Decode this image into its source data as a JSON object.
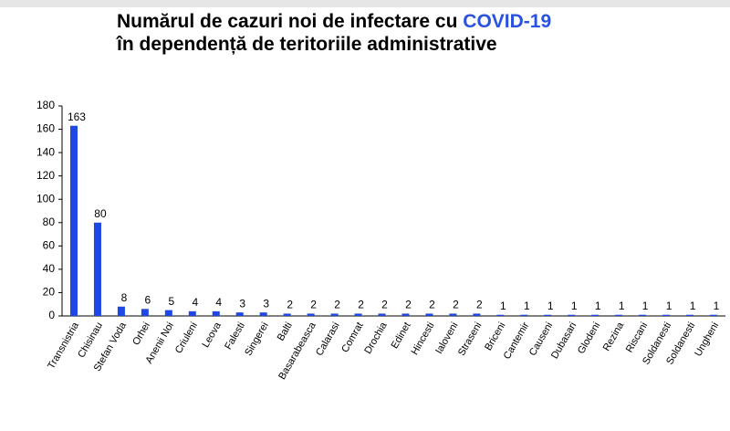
{
  "chart_data": {
    "type": "bar",
    "title": "Numărul de cazuri noi de infectare cu",
    "title_highlight": "COVID-19",
    "subtitle": "în dependență de teritoriile administrative",
    "categories": [
      "Transnistria",
      "Chisinau",
      "Stefan Voda",
      "Orhei",
      "Anenii Noi",
      "Criuleni",
      "Leova",
      "Falesti",
      "Singerei",
      "Balti",
      "Basarabeasca",
      "Calarasi",
      "Comrat",
      "Drochia",
      "Edinet",
      "Hincesti",
      "Ialoveni",
      "Straseni",
      "Briceni",
      "Cantemir",
      "Causeni",
      "Dubasari",
      "Glodeni",
      "Rezina",
      "Riscani",
      "Soldanesti",
      "Soldanesti",
      "Ungheni"
    ],
    "values": [
      163,
      80,
      8,
      6,
      5,
      4,
      4,
      3,
      3,
      2,
      2,
      2,
      2,
      2,
      2,
      2,
      2,
      2,
      1,
      1,
      1,
      1,
      1,
      1,
      1,
      1,
      1,
      1
    ],
    "color": "#1f47e6",
    "ylim": [
      0,
      180
    ],
    "yticks": [
      0,
      20,
      40,
      60,
      80,
      100,
      120,
      140,
      160,
      180
    ],
    "grid": false
  }
}
